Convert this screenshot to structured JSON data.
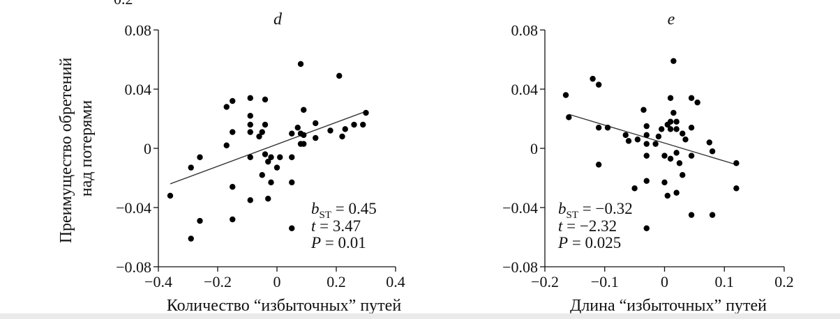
{
  "figure": {
    "corner_label": "0.2",
    "y_axis_title": [
      "Преимущество обретений",
      "над потерями"
    ]
  },
  "chart_data": [
    {
      "type": "scatter",
      "panel_label": "d",
      "xlabel": "Количество “избыточных” путей",
      "xlim": [
        -0.4,
        0.4
      ],
      "ylim": [
        -0.08,
        0.08
      ],
      "x_ticks": [
        -0.4,
        -0.2,
        0,
        0.2,
        0.4
      ],
      "x_tick_labels": [
        "−0.4",
        "−0.2",
        "0",
        "0.2",
        "0.4"
      ],
      "y_ticks": [
        0.08,
        0.04,
        0,
        -0.04,
        -0.08
      ],
      "y_tick_labels": [
        "0.08",
        "0.04",
        "0",
        "−0.04",
        "−0.08"
      ],
      "grid": false,
      "stats": {
        "b_prefix": "b",
        "b_sub": "ST",
        "b_value": " = 0.45",
        "t_prefix": "t",
        "t_value": " = 3.47",
        "p_prefix": "P",
        "p_value": " = 0.01"
      },
      "trend_line": [
        [
          -0.36,
          -0.024
        ],
        [
          0.3,
          0.025
        ]
      ],
      "points": [
        [
          -0.36,
          -0.032
        ],
        [
          -0.29,
          -0.061
        ],
        [
          -0.29,
          -0.013
        ],
        [
          -0.26,
          -0.006
        ],
        [
          -0.26,
          -0.049
        ],
        [
          -0.17,
          0.028
        ],
        [
          -0.17,
          0.002
        ],
        [
          -0.15,
          0.032
        ],
        [
          -0.15,
          0.011
        ],
        [
          -0.15,
          -0.026
        ],
        [
          -0.15,
          -0.048
        ],
        [
          -0.09,
          0.034
        ],
        [
          -0.09,
          0.022
        ],
        [
          -0.09,
          0.016
        ],
        [
          -0.09,
          0.011
        ],
        [
          -0.09,
          -0.006
        ],
        [
          -0.09,
          -0.035
        ],
        [
          -0.06,
          0.008
        ],
        [
          -0.05,
          0.011
        ],
        [
          -0.04,
          0.016
        ],
        [
          -0.04,
          0.033
        ],
        [
          -0.04,
          -0.004
        ],
        [
          -0.03,
          -0.009
        ],
        [
          -0.03,
          -0.034
        ],
        [
          -0.02,
          -0.023
        ],
        [
          -0.05,
          -0.018
        ],
        [
          0.0,
          -0.013
        ],
        [
          -0.02,
          -0.006
        ],
        [
          0.01,
          -0.006
        ],
        [
          0.05,
          0.01
        ],
        [
          0.05,
          -0.006
        ],
        [
          0.05,
          -0.023
        ],
        [
          0.05,
          -0.054
        ],
        [
          0.07,
          0.014
        ],
        [
          0.08,
          0.01
        ],
        [
          0.08,
          0.003
        ],
        [
          0.08,
          0.057
        ],
        [
          0.09,
          0.026
        ],
        [
          0.09,
          0.003
        ],
        [
          0.09,
          0.009
        ],
        [
          0.13,
          0.017
        ],
        [
          0.13,
          0.007
        ],
        [
          0.18,
          0.012
        ],
        [
          0.21,
          0.049
        ],
        [
          0.22,
          0.008
        ],
        [
          0.23,
          0.013
        ],
        [
          0.26,
          0.016
        ],
        [
          0.29,
          0.016
        ],
        [
          0.3,
          0.024
        ]
      ]
    },
    {
      "type": "scatter",
      "panel_label": "e",
      "xlabel": "Длина “избыточных” путей",
      "xlim": [
        -0.2,
        0.2
      ],
      "ylim": [
        -0.08,
        0.08
      ],
      "x_ticks": [
        -0.2,
        -0.1,
        0,
        0.1,
        0.2
      ],
      "x_tick_labels": [
        "−0.2",
        "−0.1",
        "0",
        "0.1",
        "0.2"
      ],
      "y_ticks": [
        0.08,
        0.04,
        0,
        -0.04,
        -0.08
      ],
      "y_tick_labels": [
        "0.08",
        "0.04",
        "0",
        "−0.04",
        "−0.08"
      ],
      "grid": false,
      "stats": {
        "b_prefix": "b",
        "b_sub": "ST",
        "b_value": " = −0.32",
        "t_prefix": "t",
        "t_value": " = −2.32",
        "p_prefix": "P",
        "p_value": " = 0.025"
      },
      "trend_line": [
        [
          -0.16,
          0.023
        ],
        [
          0.12,
          -0.011
        ]
      ],
      "points": [
        [
          -0.165,
          0.036
        ],
        [
          -0.16,
          0.021
        ],
        [
          -0.12,
          0.047
        ],
        [
          -0.11,
          0.043
        ],
        [
          -0.11,
          0.014
        ],
        [
          -0.11,
          -0.011
        ],
        [
          -0.095,
          0.014
        ],
        [
          -0.065,
          0.009
        ],
        [
          -0.06,
          0.005
        ],
        [
          -0.05,
          -0.027
        ],
        [
          -0.045,
          0.006
        ],
        [
          -0.035,
          0.026
        ],
        [
          -0.03,
          0.015
        ],
        [
          -0.03,
          0.009
        ],
        [
          -0.03,
          0.003
        ],
        [
          -0.03,
          -0.005
        ],
        [
          -0.03,
          -0.022
        ],
        [
          -0.03,
          -0.054
        ],
        [
          -0.015,
          0.003
        ],
        [
          -0.01,
          0.008
        ],
        [
          -0.005,
          0.013
        ],
        [
          0.0,
          -0.005
        ],
        [
          0.0,
          -0.023
        ],
        [
          0.005,
          0.016
        ],
        [
          0.005,
          -0.032
        ],
        [
          0.01,
          0.034
        ],
        [
          0.01,
          0.018
        ],
        [
          0.01,
          0.013
        ],
        [
          0.01,
          -0.007
        ],
        [
          0.015,
          0.059
        ],
        [
          0.015,
          0.024
        ],
        [
          0.02,
          0.018
        ],
        [
          0.02,
          0.013
        ],
        [
          0.02,
          -0.003
        ],
        [
          0.02,
          -0.03
        ],
        [
          0.025,
          -0.01
        ],
        [
          0.03,
          0.01
        ],
        [
          0.03,
          -0.018
        ],
        [
          0.035,
          0.006
        ],
        [
          0.045,
          0.034
        ],
        [
          0.045,
          0.014
        ],
        [
          0.045,
          -0.005
        ],
        [
          0.045,
          -0.045
        ],
        [
          0.055,
          0.031
        ],
        [
          0.075,
          0.004
        ],
        [
          0.08,
          -0.002
        ],
        [
          0.08,
          -0.045
        ],
        [
          0.12,
          -0.01
        ],
        [
          0.12,
          -0.027
        ]
      ]
    }
  ]
}
